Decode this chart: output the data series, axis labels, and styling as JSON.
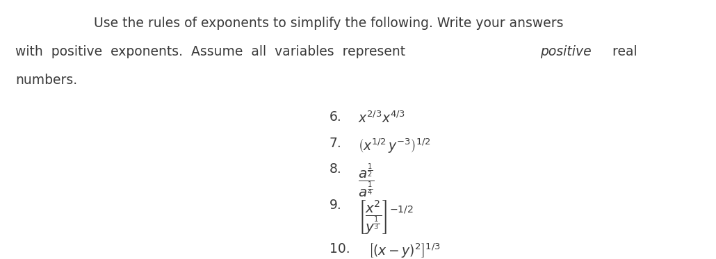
{
  "background_color": "#ffffff",
  "fig_width": 10.3,
  "fig_height": 3.73,
  "dpi": 100,
  "intro_text_line1": "Use the rules of exponents to simplify the following. Write your answers",
  "intro_text_line2": "with  positive  exponents.  Assume  all  variables  represent   positive   real",
  "intro_text_line3": "numbers.",
  "items": [
    {
      "number": "6.",
      "label": "x²ᐟ³ x⁴ᐟ³"
    },
    {
      "number": "7.",
      "label": "( x¹ᐟ² y⁻³ )¹ᐟ²"
    },
    {
      "number": "8.",
      "label": "fraction_a"
    },
    {
      "number": "9.",
      "label": "fraction_x_y"
    },
    {
      "number": "10.",
      "label": "[ (x – y)² ]¹ᐟ³"
    }
  ],
  "font_size_intro": 13.5,
  "font_size_items": 13.5,
  "text_color": "#3a3a3a",
  "font_family": "DejaVu Sans"
}
